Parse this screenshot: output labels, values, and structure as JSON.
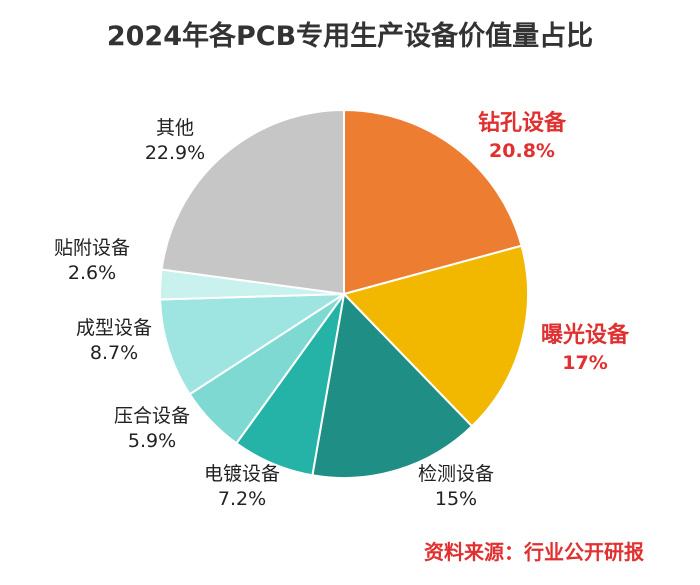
{
  "title": "2024年各PCB专用生产设备价值量占比",
  "source": "资料来源：行业公开研报",
  "colors": {
    "highlight_text": "#e03030"
  },
  "chart_data": {
    "type": "pie",
    "title": "2024年各PCB专用生产设备价值量占比",
    "start_angle_deg": 0,
    "direction": "clockwise",
    "slices": [
      {
        "label": "钻孔设备",
        "display": "20.8%",
        "value": 20.8,
        "color": "#ed7d31",
        "highlight": true
      },
      {
        "label": "曝光设备",
        "display": "17%",
        "value": 17.0,
        "color": "#f2b800",
        "highlight": true
      },
      {
        "label": "检测设备",
        "display": "15%",
        "value": 15.0,
        "color": "#1f8f86",
        "highlight": false
      },
      {
        "label": "电镀设备",
        "display": "7.2%",
        "value": 7.2,
        "color": "#26b3a7",
        "highlight": false
      },
      {
        "label": "压合设备",
        "display": "5.9%",
        "value": 5.9,
        "color": "#7fd9d3",
        "highlight": false
      },
      {
        "label": "成型设备",
        "display": "8.7%",
        "value": 8.7,
        "color": "#9ee5e1",
        "highlight": false
      },
      {
        "label": "贴附设备",
        "display": "2.6%",
        "value": 2.6,
        "color": "#c9f1ee",
        "highlight": false
      },
      {
        "label": "其他",
        "display": "22.9%",
        "value": 22.9,
        "color": "#c6c6c6",
        "highlight": false
      }
    ]
  }
}
